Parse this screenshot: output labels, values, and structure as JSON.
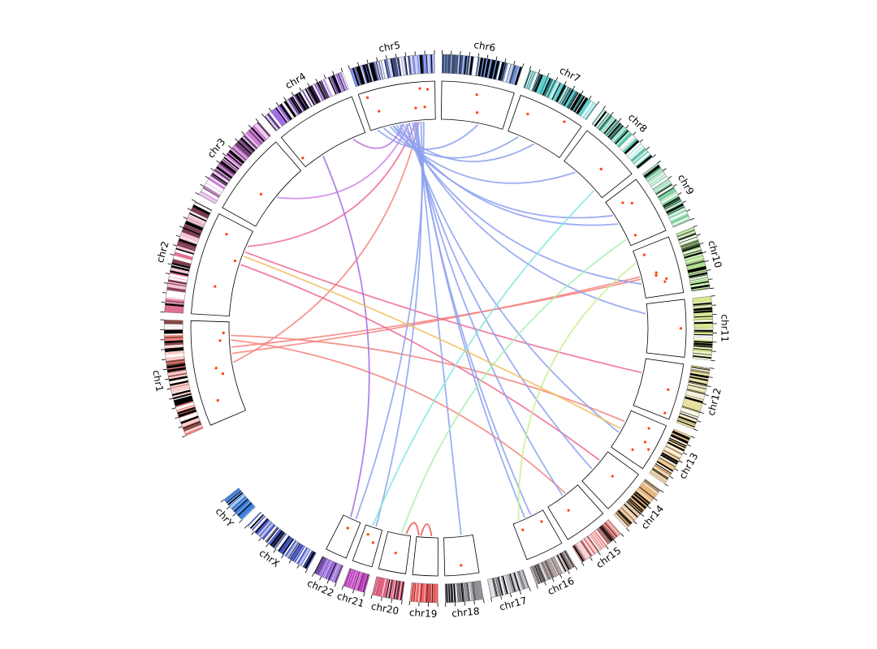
{
  "diagram": {
    "type": "circos",
    "chromosomes": [
      {
        "name": "chr1",
        "label": "chr1",
        "color": "#f4837d",
        "size": 249,
        "track_points": [
          0.2,
          0.45,
          0.52,
          0.8,
          0.88
        ]
      },
      {
        "name": "chr2",
        "label": "chr2",
        "color": "#e07090",
        "size": 243,
        "track_points": [
          0.3,
          0.62,
          0.85
        ]
      },
      {
        "name": "chr3",
        "label": "chr3",
        "color": "#d080d8",
        "size": 198,
        "track_points": [
          0.4
        ]
      },
      {
        "name": "chr4",
        "label": "chr4",
        "color": "#a070e0",
        "size": 190,
        "track_points": [
          0.05
        ]
      },
      {
        "name": "chr5",
        "label": "chr5",
        "color": "#8090f0",
        "size": 181,
        "track_points": [
          0.1,
          0.2,
          0.72,
          0.8,
          0.85,
          0.9
        ]
      },
      {
        "name": "chr6",
        "label": "chr6",
        "color": "#7090d8",
        "size": 171,
        "track_points": [
          0.5,
          0.55
        ]
      },
      {
        "name": "chr7",
        "label": "chr7",
        "color": "#60d0d0",
        "size": 159,
        "track_points": [
          0.2,
          0.75
        ]
      },
      {
        "name": "chr8",
        "label": "chr8",
        "color": "#60c8b0",
        "size": 145,
        "track_points": [
          0.6
        ]
      },
      {
        "name": "chr9",
        "label": "chr9",
        "color": "#80d0a0",
        "size": 138,
        "track_points": [
          0.2,
          0.3,
          0.85
        ]
      },
      {
        "name": "chr10",
        "label": "chr10",
        "color": "#b0e090",
        "size": 134,
        "track_points": [
          0.15,
          0.55,
          0.6,
          0.7,
          0.75
        ]
      },
      {
        "name": "chr11",
        "label": "chr11",
        "color": "#d8e890",
        "size": 135,
        "track_points": [
          0.5
        ]
      },
      {
        "name": "chr12",
        "label": "chr12",
        "color": "#e8e0a0",
        "size": 133,
        "track_points": [
          0.5,
          0.92
        ]
      },
      {
        "name": "chr13",
        "label": "chr13",
        "color": "#f0c890",
        "size": 114,
        "track_points": [
          0.2,
          0.5,
          0.6,
          0.78
        ]
      },
      {
        "name": "chr14",
        "label": "chr14",
        "color": "#e8b880",
        "size": 107,
        "track_points": [
          0.4
        ]
      },
      {
        "name": "chr15",
        "label": "chr15",
        "color": "#f09090",
        "size": 102,
        "track_points": [
          0.6
        ]
      },
      {
        "name": "chr16",
        "label": "chr16",
        "color": "#b0a0a0",
        "size": 90,
        "track_points": [
          0.2,
          0.8
        ]
      },
      {
        "name": "chr17",
        "label": "chr17",
        "color": "#c0c0c8",
        "size": 83,
        "track_points": []
      },
      {
        "name": "chr18",
        "label": "chr18",
        "color": "#909098",
        "size": 80,
        "track_points": [
          0.5
        ]
      },
      {
        "name": "chr19",
        "label": "chr19",
        "color": "#f06060",
        "size": 59,
        "track_points": []
      },
      {
        "name": "chr20",
        "label": "chr20",
        "color": "#e06080",
        "size": 64,
        "track_points": [
          0.5
        ]
      },
      {
        "name": "chr21",
        "label": "chr21",
        "color": "#c040c0",
        "size": 47,
        "track_points": [
          0.3,
          0.7
        ]
      },
      {
        "name": "chr22",
        "label": "chr22",
        "color": "#9060d0",
        "size": 51,
        "track_points": [
          0.5
        ]
      },
      {
        "name": "chrX",
        "label": "chrX",
        "color": "#5060d0",
        "size": 156,
        "track_points": []
      },
      {
        "name": "chrY",
        "label": "chrY",
        "color": "#4080e0",
        "size": 57,
        "track_points": []
      }
    ],
    "links": [
      {
        "from": "chr1",
        "from_pos": 0.55,
        "to": "chr5",
        "to_pos": 0.75,
        "color": "#f4837d"
      },
      {
        "from": "chr1",
        "from_pos": 0.65,
        "to": "chr10",
        "to_pos": 0.55,
        "color": "#f4837d"
      },
      {
        "from": "chr1",
        "from_pos": 0.72,
        "to": "chr10",
        "to_pos": 0.6,
        "color": "#f4837d"
      },
      {
        "from": "chr1",
        "from_pos": 0.8,
        "to": "chr15",
        "to_pos": 0.4,
        "color": "#f4837d"
      },
      {
        "from": "chr1",
        "from_pos": 0.85,
        "to": "chr13",
        "to_pos": 0.3,
        "color": "#f4837d"
      },
      {
        "from": "chr2",
        "from_pos": 0.82,
        "to": "chr5",
        "to_pos": 0.7,
        "color": "#f06a90"
      },
      {
        "from": "chr2",
        "from_pos": 0.75,
        "to": "chr12",
        "to_pos": 0.3,
        "color": "#f06a90"
      },
      {
        "from": "chr2",
        "from_pos": 0.6,
        "to": "chr14",
        "to_pos": 0.3,
        "color": "#f06a90"
      },
      {
        "from": "chr3",
        "from_pos": 0.5,
        "to": "chr5",
        "to_pos": 0.6,
        "color": "#d080e8"
      },
      {
        "from": "chr4",
        "from_pos": 0.3,
        "to": "chr22",
        "to_pos": 0.6,
        "color": "#a070e0"
      },
      {
        "from": "chr4",
        "from_pos": 0.8,
        "to": "chr5",
        "to_pos": 0.5,
        "color": "#c070e0"
      },
      {
        "from": "chr5",
        "from_pos": 0.1,
        "to": "chr6",
        "to_pos": 0.6,
        "color": "#8ca0f0"
      },
      {
        "from": "chr5",
        "from_pos": 0.2,
        "to": "chr7",
        "to_pos": 0.2,
        "color": "#8ca0f0"
      },
      {
        "from": "chr5",
        "from_pos": 0.3,
        "to": "chr8",
        "to_pos": 0.3,
        "color": "#8ca0f0"
      },
      {
        "from": "chr5",
        "from_pos": 0.35,
        "to": "chr9",
        "to_pos": 0.3,
        "color": "#8ca0f0"
      },
      {
        "from": "chr5",
        "from_pos": 0.4,
        "to": "chr9",
        "to_pos": 0.5,
        "color": "#8ca0f0"
      },
      {
        "from": "chr5",
        "from_pos": 0.45,
        "to": "chr10",
        "to_pos": 0.7,
        "color": "#8ca0f0"
      },
      {
        "from": "chr5",
        "from_pos": 0.5,
        "to": "chr11",
        "to_pos": 0.2,
        "color": "#8ca0f0"
      },
      {
        "from": "chr5",
        "from_pos": 0.55,
        "to": "chr13",
        "to_pos": 0.6,
        "color": "#8ca0f0"
      },
      {
        "from": "chr5",
        "from_pos": 0.6,
        "to": "chr14",
        "to_pos": 0.6,
        "color": "#8ca0f0"
      },
      {
        "from": "chr5",
        "from_pos": 0.65,
        "to": "chr15",
        "to_pos": 0.5,
        "color": "#8ca0f0"
      },
      {
        "from": "chr5",
        "from_pos": 0.68,
        "to": "chr16",
        "to_pos": 0.4,
        "color": "#8ca0f0"
      },
      {
        "from": "chr5",
        "from_pos": 0.7,
        "to": "chr16",
        "to_pos": 0.6,
        "color": "#8ca0f0"
      },
      {
        "from": "chr5",
        "from_pos": 0.72,
        "to": "chr18",
        "to_pos": 0.4,
        "color": "#8ca0f0"
      },
      {
        "from": "chr5",
        "from_pos": 0.78,
        "to": "chr21",
        "to_pos": 0.4,
        "color": "#8ca0f0"
      },
      {
        "from": "chr5",
        "from_pos": 0.82,
        "to": "chr22",
        "to_pos": 0.3,
        "color": "#8ca0f0"
      },
      {
        "from": "chr7",
        "from_pos": 0.5,
        "to": "chr5",
        "to_pos": 0.35,
        "color": "#8ca0f0"
      },
      {
        "from": "chr8",
        "from_pos": 0.8,
        "to": "chr21",
        "to_pos": 0.6,
        "color": "#80e8e0"
      },
      {
        "from": "chr9",
        "from_pos": 0.85,
        "to": "chr20",
        "to_pos": 0.4,
        "color": "#a8f0b0"
      },
      {
        "from": "chr10",
        "from_pos": 0.25,
        "to": "chr16",
        "to_pos": 0.8,
        "color": "#c8f090"
      },
      {
        "from": "chr19",
        "from_pos": 0.3,
        "to": "chr19",
        "to_pos": 0.8,
        "color": "#f04848"
      },
      {
        "from": "chr20",
        "from_pos": 0.2,
        "to": "chr19",
        "to_pos": 0.9,
        "color": "#f04848"
      },
      {
        "from": "chr2",
        "from_pos": 0.7,
        "to": "chr13",
        "to_pos": 0.5,
        "color": "#f0c060"
      }
    ]
  }
}
